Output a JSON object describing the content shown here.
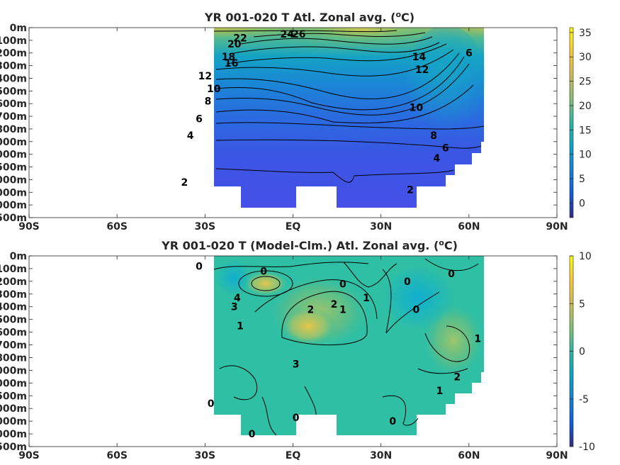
{
  "colormap": {
    "name": "parula",
    "stops": [
      "#352a87",
      "#0f5cdd",
      "#1481d6",
      "#06a4ca",
      "#2eb7a4",
      "#87bf77",
      "#d1bb59",
      "#fec832",
      "#f9fb0e"
    ]
  },
  "chart_data": [
    {
      "type": "heatmap",
      "title_pre": "YR 001-020 T Atl. Zonal avg. (",
      "title_unit": "oC",
      "title_post": ")",
      "x_ticks": [
        "90S",
        "60S",
        "30S",
        "EQ",
        "30N",
        "60N",
        "90N"
      ],
      "x_values": [
        -90,
        -60,
        -30,
        0,
        30,
        60,
        90
      ],
      "y_ticks": [
        "0m",
        "100m",
        "200m",
        "300m",
        "400m",
        "500m",
        "600m",
        "700m",
        "800m",
        "1000m",
        "2000m",
        "2500m",
        "3000m",
        "4000m",
        "5000m",
        "5500m"
      ],
      "colorbar": {
        "min": -3,
        "max": 36,
        "ticks": [
          "35",
          "30",
          "25",
          "20",
          "15",
          "10",
          "5",
          "0"
        ],
        "tick_values": [
          35,
          30,
          25,
          20,
          15,
          10,
          5,
          0
        ]
      },
      "contour_labels": [
        {
          "text": "26",
          "lat": 2,
          "depth": "50m"
        },
        {
          "text": "24",
          "lat": -2,
          "depth": "50m"
        },
        {
          "text": "22",
          "lat": -18,
          "depth": "80m"
        },
        {
          "text": "20",
          "lat": -20,
          "depth": "130m"
        },
        {
          "text": "18",
          "lat": -22,
          "depth": "230m"
        },
        {
          "text": "16",
          "lat": -21,
          "depth": "280m"
        },
        {
          "text": "14",
          "lat": 43,
          "depth": "230m"
        },
        {
          "text": "12",
          "lat": 44,
          "depth": "330m"
        },
        {
          "text": "12",
          "lat": -30,
          "depth": "380m"
        },
        {
          "text": "10",
          "lat": -27,
          "depth": "480m"
        },
        {
          "text": "8",
          "lat": -29,
          "depth": "580m"
        },
        {
          "text": "10",
          "lat": 42,
          "depth": "630m"
        },
        {
          "text": "6",
          "lat": -32,
          "depth": "720m"
        },
        {
          "text": "8",
          "lat": 48,
          "depth": "900m"
        },
        {
          "text": "6",
          "lat": 52,
          "depth": "1500m"
        },
        {
          "text": "6",
          "lat": 60,
          "depth": "200m"
        },
        {
          "text": "4",
          "lat": -35,
          "depth": "900m"
        },
        {
          "text": "4",
          "lat": 49,
          "depth": "2150m"
        },
        {
          "text": "2",
          "lat": -37,
          "depth": "3200m"
        },
        {
          "text": "2",
          "lat": 40,
          "depth": "3800m"
        }
      ]
    },
    {
      "type": "heatmap",
      "title_pre": "YR 001-020 T (Model-Clm.) Atl. Zonal avg. (",
      "title_unit": "oC",
      "title_post": ")",
      "x_ticks": [
        "90S",
        "60S",
        "30S",
        "EQ",
        "30N",
        "60N",
        "90N"
      ],
      "x_values": [
        -90,
        -60,
        -30,
        0,
        30,
        60,
        90
      ],
      "y_ticks": [
        "0m",
        "100m",
        "200m",
        "300m",
        "400m",
        "500m",
        "600m",
        "700m",
        "800m",
        "1000m",
        "2000m",
        "2500m",
        "3000m",
        "4000m",
        "5000m",
        "5500m"
      ],
      "colorbar": {
        "min": -10,
        "max": 10,
        "ticks": [
          "10",
          "5",
          "0",
          "-5",
          "-10"
        ],
        "tick_values": [
          10,
          5,
          0,
          -5,
          -10
        ]
      },
      "contour_labels": [
        {
          "text": "0",
          "lat": -32,
          "depth": "80m"
        },
        {
          "text": "0",
          "lat": -10,
          "depth": "120m"
        },
        {
          "text": "0",
          "lat": 17,
          "depth": "220m"
        },
        {
          "text": "4",
          "lat": -19,
          "depth": "330m"
        },
        {
          "text": "3",
          "lat": -20,
          "depth": "400m"
        },
        {
          "text": "1",
          "lat": -18,
          "depth": "550m"
        },
        {
          "text": "2",
          "lat": 6,
          "depth": "420m"
        },
        {
          "text": "2",
          "lat": 14,
          "depth": "380m"
        },
        {
          "text": "1",
          "lat": 17,
          "depth": "420m"
        },
        {
          "text": "1",
          "lat": 25,
          "depth": "330m"
        },
        {
          "text": "0",
          "lat": 39,
          "depth": "200m"
        },
        {
          "text": "0",
          "lat": 42,
          "depth": "420m"
        },
        {
          "text": "0",
          "lat": 54,
          "depth": "140m"
        },
        {
          "text": "1",
          "lat": 63,
          "depth": "650m"
        },
        {
          "text": "3",
          "lat": 1,
          "depth": "900m"
        },
        {
          "text": "2",
          "lat": 56,
          "depth": "1500m"
        },
        {
          "text": "1",
          "lat": 50,
          "depth": "2300m"
        },
        {
          "text": "0",
          "lat": -28,
          "depth": "2800m"
        },
        {
          "text": "0",
          "lat": 1,
          "depth": "3700m"
        },
        {
          "text": "0",
          "lat": 34,
          "depth": "4000m"
        },
        {
          "text": "0",
          "lat": -14,
          "depth": "5000m"
        }
      ]
    }
  ]
}
